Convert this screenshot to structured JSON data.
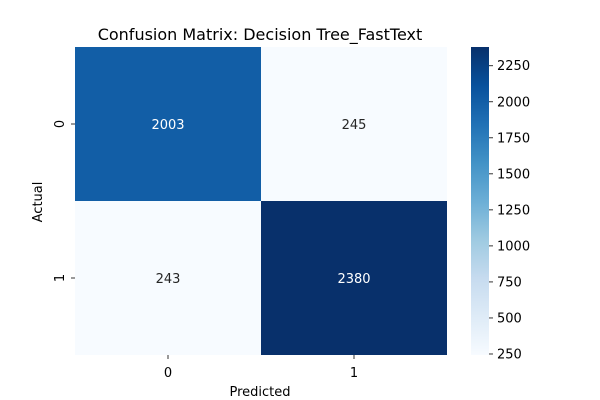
{
  "chart_data": {
    "type": "heatmap",
    "title": "Confusion Matrix: Decision Tree_FastText",
    "xlabel": "Predicted",
    "ylabel": "Actual",
    "x_categories": [
      "0",
      "1"
    ],
    "y_categories": [
      "0",
      "1"
    ],
    "values": [
      [
        2003,
        245
      ],
      [
        243,
        2380
      ]
    ],
    "colormap": "Blues",
    "vmin": 243,
    "vmax": 2380,
    "colorbar_ticks": [
      250,
      500,
      750,
      1000,
      1250,
      1500,
      1750,
      2000,
      2250
    ],
    "colorbar_tick_labels": [
      "250",
      "500",
      "750",
      "1000",
      "1250",
      "1500",
      "1750",
      "2000",
      "2250"
    ]
  }
}
